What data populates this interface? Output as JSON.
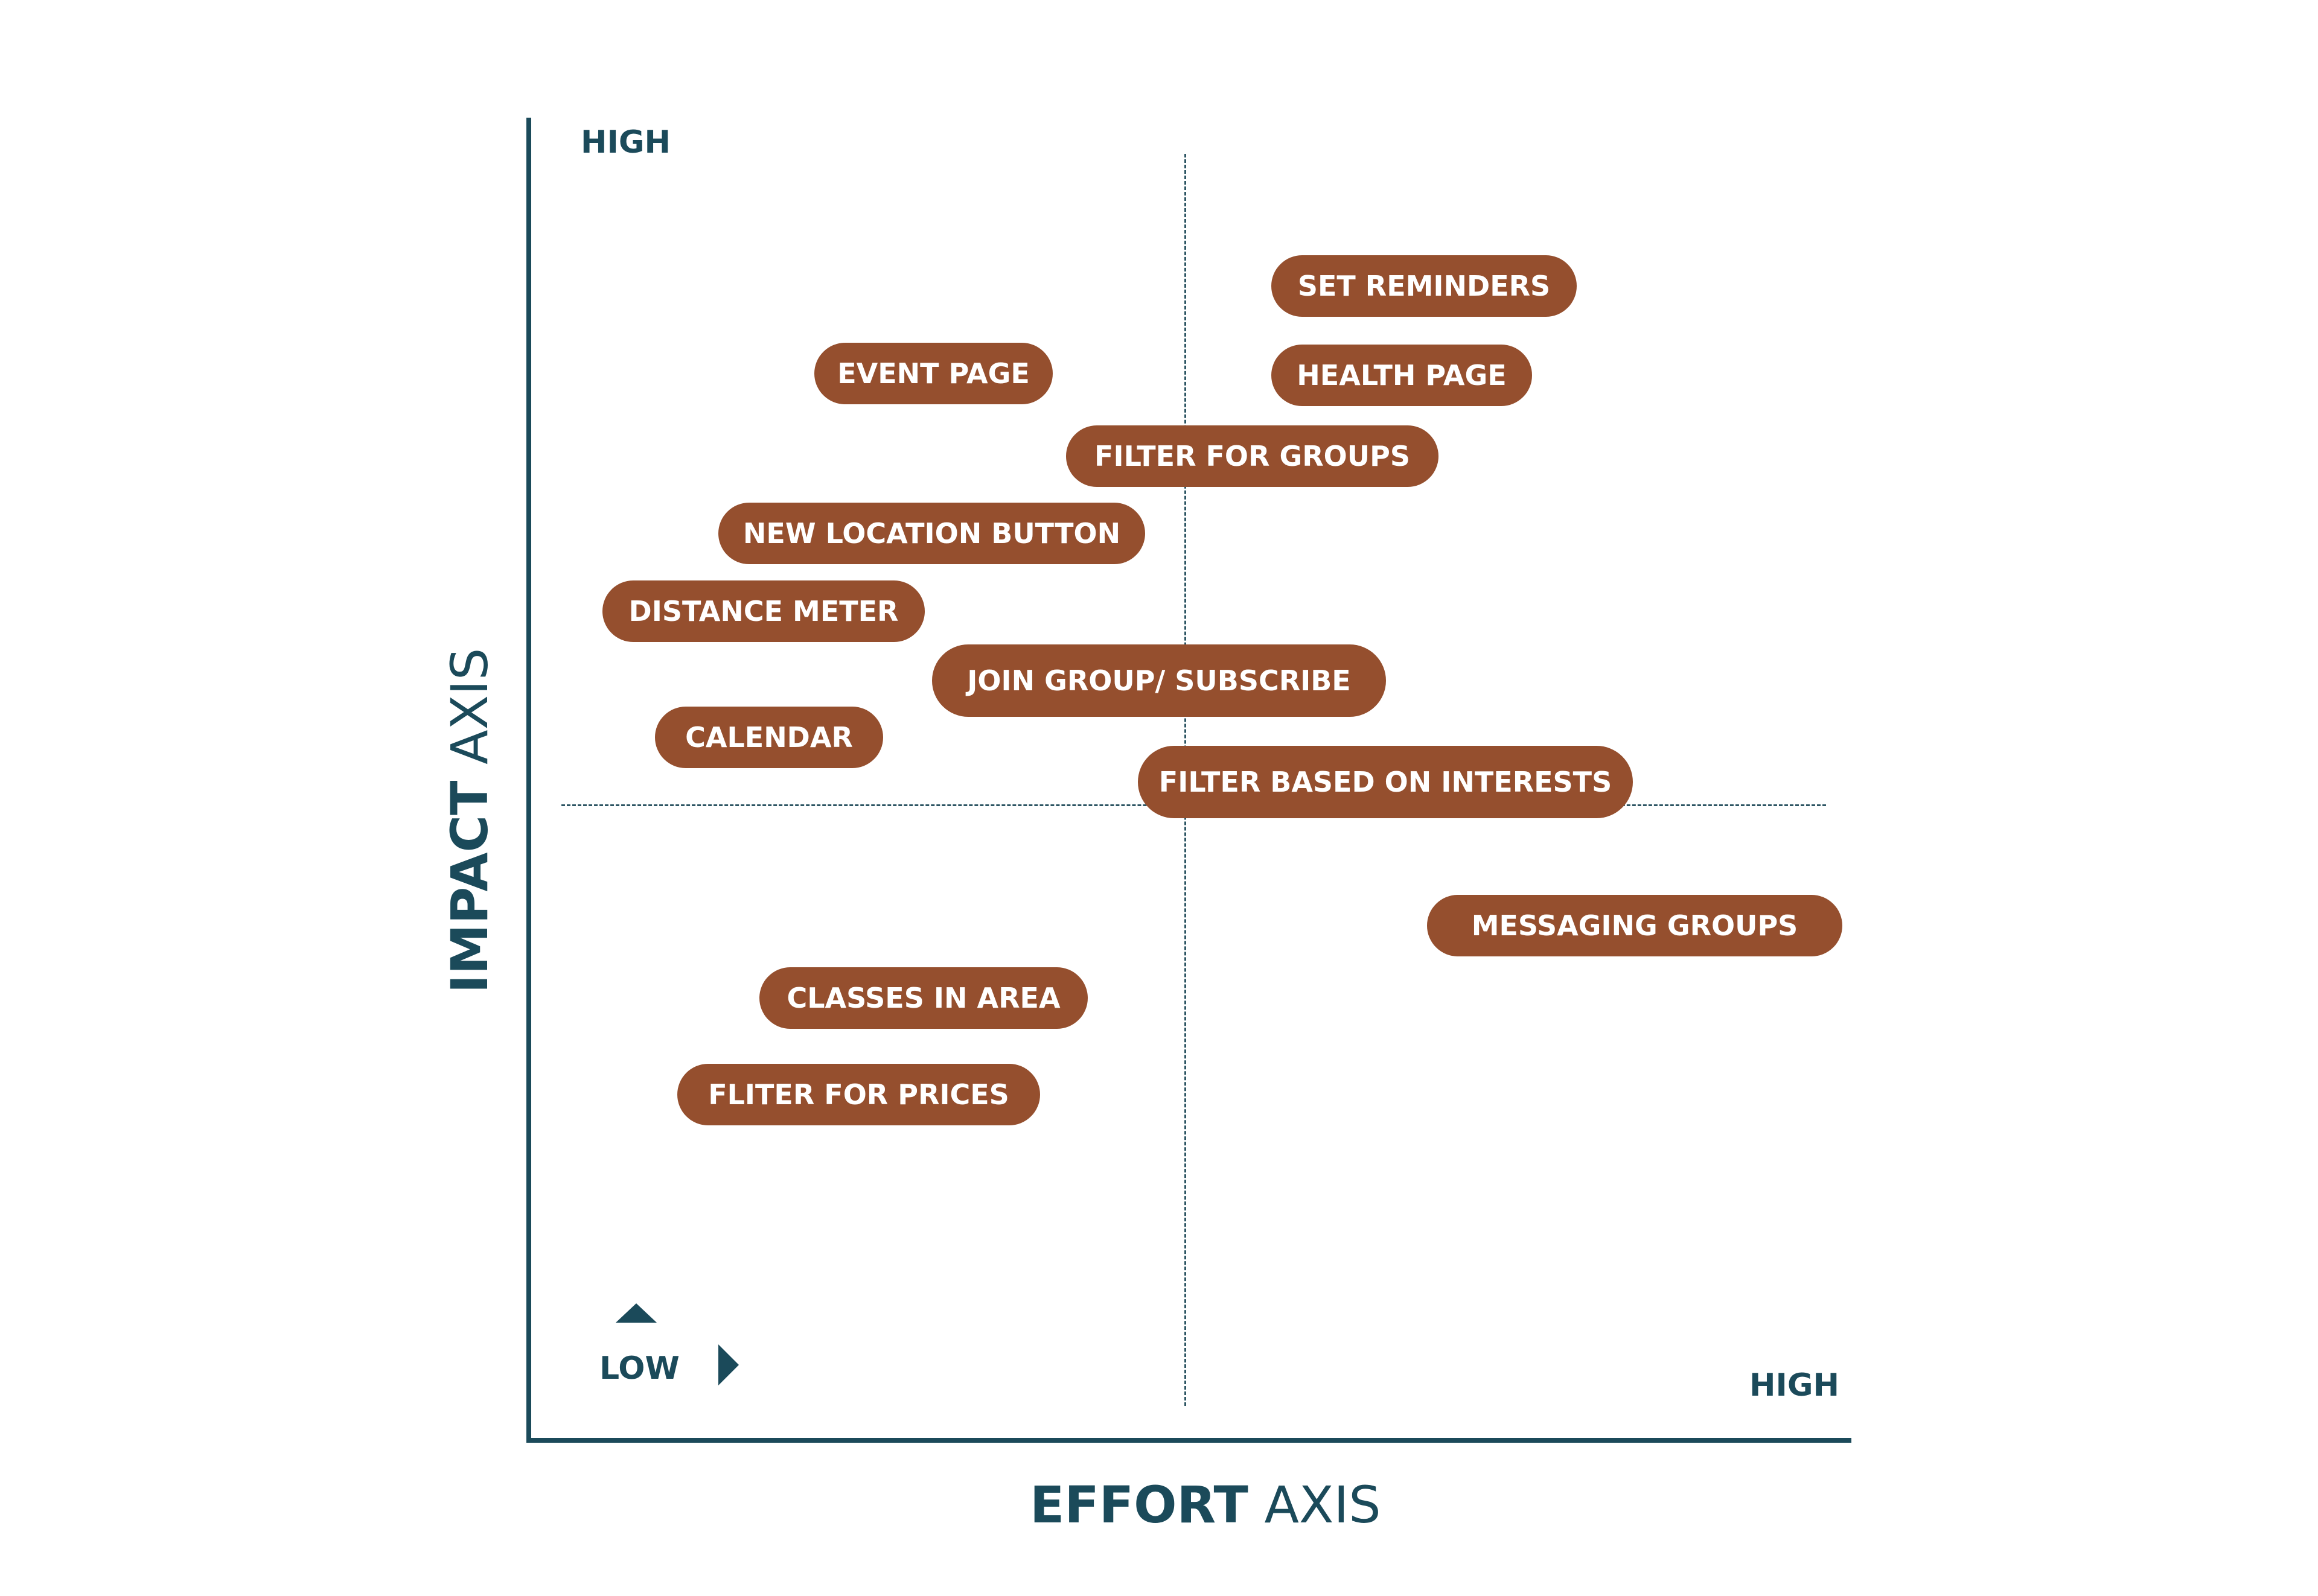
{
  "axes": {
    "y_high": "HIGH",
    "x_high": "HIGH",
    "low": "LOW",
    "x_title_bold": "EFFORT",
    "x_title_light": " AXIS",
    "y_title_bold": "IMPACT",
    "y_title_light": " AXIS"
  },
  "items": {
    "set_reminders": "SET REMINDERS",
    "event_page": "EVENT PAGE",
    "health_page": "HEALTH PAGE",
    "filter_groups": "FILTER FOR GROUPS",
    "new_location": "NEW LOCATION BUTTON",
    "distance_meter": "DISTANCE METER",
    "join_group": "JOIN GROUP/ SUBSCRIBE",
    "calendar": "CALENDAR",
    "filter_interests": "FILTER BASED ON INTERESTS",
    "messaging": "MESSAGING GROUPS",
    "classes": "CLASSES IN AREA",
    "fliter_prices": "FLITER FOR PRICES"
  },
  "colors": {
    "axis": "#1b4a5a",
    "pill": "#954f2e",
    "pill_text": "#ffffff"
  },
  "icons": {
    "up": "triangle-up-icon",
    "right": "triangle-right-icon"
  }
}
